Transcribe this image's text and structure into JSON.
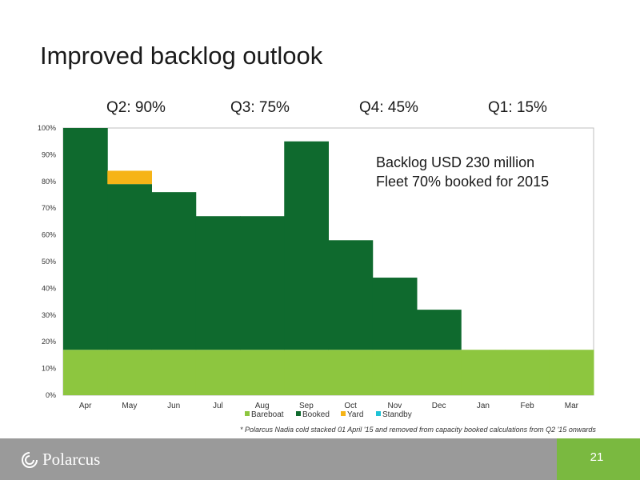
{
  "slide": {
    "title": "Improved backlog outlook",
    "quarters": [
      "Q2: 90%",
      "Q3: 75%",
      "Q4: 45%",
      "Q1: 15%"
    ],
    "annotation_lines": [
      "Backlog USD 230 million",
      "Fleet 70% booked for 2015"
    ],
    "footnote": "* Polarcus Nadia cold stacked 01 April '15 and removed from capacity booked calculations from Q2 '15 onwards",
    "logo_text": "Polarcus",
    "page_number": "21",
    "brand_color": "#7ab940"
  },
  "chart_data": {
    "type": "bar",
    "stacked": true,
    "categories": [
      "Apr",
      "May",
      "Jun",
      "Jul",
      "Aug",
      "Sep",
      "Oct",
      "Nov",
      "Dec",
      "Jan",
      "Feb",
      "Mar"
    ],
    "series": [
      {
        "name": "Bareboat",
        "color": "#8dc63f",
        "values": [
          17,
          17,
          17,
          17,
          17,
          17,
          17,
          17,
          17,
          17,
          17,
          17
        ]
      },
      {
        "name": "Booked",
        "color": "#0f6a2e",
        "values": [
          83,
          62,
          59,
          50,
          50,
          78,
          41,
          27,
          15,
          0,
          0,
          0
        ]
      },
      {
        "name": "Yard",
        "color": "#f6b417",
        "values": [
          0,
          5,
          0,
          0,
          0,
          0,
          0,
          0,
          0,
          0,
          0,
          0
        ]
      },
      {
        "name": "Standby",
        "color": "#1ec2d6",
        "values": [
          0,
          0,
          0,
          0,
          0,
          0,
          0,
          0,
          0,
          0,
          0,
          0
        ]
      }
    ],
    "ylim": [
      0,
      100
    ],
    "yticks": [
      "0%",
      "10%",
      "20%",
      "30%",
      "40%",
      "50%",
      "60%",
      "70%",
      "80%",
      "90%",
      "100%"
    ],
    "grid": false,
    "legend_position": "bottom"
  }
}
